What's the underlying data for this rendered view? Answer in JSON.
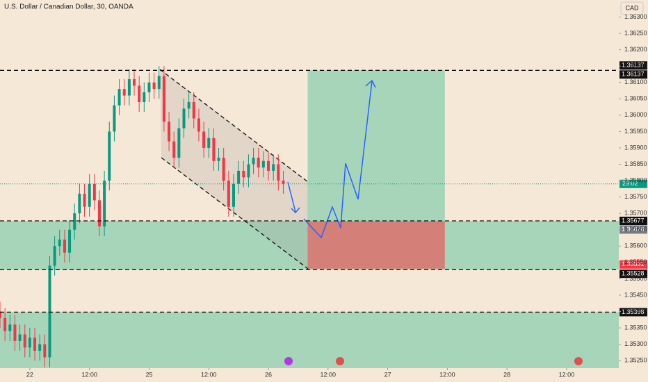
{
  "chart_data": {
    "type": "candlestick",
    "title": "U.S. Dollar / Canadian Dollar, 30, OANDA",
    "currency": "CAD",
    "countdown": "29:02",
    "x": [
      -6,
      -5,
      -4,
      -3,
      -2,
      -1,
      0,
      1,
      2,
      3,
      4,
      5,
      6,
      7,
      8,
      9,
      10,
      11,
      12,
      13,
      14,
      15,
      16,
      17,
      18,
      19,
      20,
      21,
      22,
      23,
      24,
      25,
      26,
      27,
      28,
      29,
      30,
      31,
      32,
      33,
      34,
      35,
      36,
      37,
      38,
      39,
      40,
      41,
      42,
      43,
      44,
      45,
      46,
      47,
      48,
      49,
      50,
      51
    ],
    "open": [
      1.354,
      1.3538,
      1.3534,
      1.3536,
      1.3531,
      1.3533,
      1.3529,
      1.3532,
      1.3528,
      1.353,
      1.3526,
      1.3554,
      1.356,
      1.3562,
      1.3558,
      1.3565,
      1.357,
      1.3576,
      1.3572,
      1.3579,
      1.3574,
      1.3566,
      1.358,
      1.3595,
      1.3603,
      1.3608,
      1.3606,
      1.3611,
      1.3609,
      1.3604,
      1.3607,
      1.361,
      1.3608,
      1.3612,
      1.3598,
      1.3592,
      1.3587,
      1.3596,
      1.3602,
      1.3604,
      1.3599,
      1.3595,
      1.359,
      1.3593,
      1.3586,
      1.3587,
      1.358,
      1.3572,
      1.3579,
      1.3583,
      1.3581,
      1.3585,
      1.3587,
      1.3584,
      1.3586,
      1.3583,
      1.3585,
      1.358
    ],
    "high": [
      1.3543,
      1.3541,
      1.3539,
      1.3539,
      1.3536,
      1.3536,
      1.3535,
      1.3535,
      1.3533,
      1.3533,
      1.3557,
      1.3563,
      1.3565,
      1.3565,
      1.3568,
      1.3573,
      1.3579,
      1.3579,
      1.3582,
      1.3582,
      1.3577,
      1.3583,
      1.3598,
      1.3606,
      1.3611,
      1.3611,
      1.3614,
      1.3614,
      1.3612,
      1.361,
      1.3613,
      1.3613,
      1.3615,
      1.3615,
      1.3601,
      1.3595,
      1.3599,
      1.3605,
      1.3607,
      1.3607,
      1.3602,
      1.3598,
      1.3596,
      1.3596,
      1.359,
      1.359,
      1.3583,
      1.3582,
      1.3586,
      1.3586,
      1.3588,
      1.359,
      1.359,
      1.3589,
      1.3589,
      1.3588,
      1.3588,
      1.3583
    ],
    "low": [
      1.3535,
      1.3531,
      1.3531,
      1.3528,
      1.3528,
      1.3526,
      1.3526,
      1.3525,
      1.3525,
      1.3523,
      1.3523,
      1.3551,
      1.3557,
      1.3555,
      1.3555,
      1.3562,
      1.3567,
      1.3569,
      1.3569,
      1.3571,
      1.3563,
      1.3563,
      1.3577,
      1.3592,
      1.36,
      1.3603,
      1.3603,
      1.3606,
      1.3601,
      1.3601,
      1.3604,
      1.3605,
      1.3605,
      1.3595,
      1.3589,
      1.3584,
      1.3584,
      1.3593,
      1.3599,
      1.3596,
      1.3592,
      1.3587,
      1.3587,
      1.3583,
      1.3583,
      1.3577,
      1.3569,
      1.3569,
      1.3576,
      1.3578,
      1.3578,
      1.3582,
      1.3581,
      1.3581,
      1.358,
      1.358,
      1.3577,
      1.3576
    ],
    "close": [
      1.3538,
      1.3534,
      1.3536,
      1.3531,
      1.3533,
      1.3529,
      1.3532,
      1.3528,
      1.353,
      1.3526,
      1.3554,
      1.356,
      1.3562,
      1.3558,
      1.3565,
      1.357,
      1.3576,
      1.3572,
      1.3579,
      1.3574,
      1.3566,
      1.358,
      1.3595,
      1.3603,
      1.3608,
      1.3606,
      1.3611,
      1.3609,
      1.3604,
      1.3607,
      1.361,
      1.3608,
      1.3612,
      1.3598,
      1.3592,
      1.3587,
      1.3596,
      1.3602,
      1.3604,
      1.3599,
      1.3595,
      1.359,
      1.3593,
      1.3586,
      1.3587,
      1.358,
      1.3572,
      1.3579,
      1.3583,
      1.3581,
      1.3585,
      1.3587,
      1.3584,
      1.3586,
      1.3583,
      1.3585,
      1.358,
      1.3579
    ],
    "up_color": "#089981",
    "down_color": "#f23645",
    "xlim": [
      -6,
      118.5
    ],
    "xticks": [
      {
        "value": 0,
        "label": "22"
      },
      {
        "value": 12,
        "label": "12:00"
      },
      {
        "value": 24,
        "label": "25"
      },
      {
        "value": 36,
        "label": "12:00"
      },
      {
        "value": 48,
        "label": "26"
      },
      {
        "value": 60,
        "label": "12:00"
      },
      {
        "value": 72,
        "label": "27"
      },
      {
        "value": 84,
        "label": "12:00"
      },
      {
        "value": 96,
        "label": "28"
      },
      {
        "value": 108,
        "label": "12:00"
      }
    ],
    "ylim": [
      1.35227,
      1.36352
    ],
    "yticks": [
      {
        "value": 1.363,
        "label": "1.36300"
      },
      {
        "value": 1.3625,
        "label": "1.36250"
      },
      {
        "value": 1.362,
        "label": "1.36200"
      },
      {
        "value": 1.3615,
        "label": "1.36150"
      },
      {
        "value": 1.361,
        "label": "1.36100"
      },
      {
        "value": 1.3605,
        "label": "1.36050"
      },
      {
        "value": 1.36,
        "label": "1.36000"
      },
      {
        "value": 1.3595,
        "label": "1.35950"
      },
      {
        "value": 1.359,
        "label": "1.35900"
      },
      {
        "value": 1.3585,
        "label": "1.35850"
      },
      {
        "value": 1.358,
        "label": "1.35800"
      },
      {
        "value": 1.3575,
        "label": "1.35750"
      },
      {
        "value": 1.357,
        "label": "1.35700"
      },
      {
        "value": 1.3565,
        "label": "1.35650"
      },
      {
        "value": 1.356,
        "label": "1.35600"
      },
      {
        "value": 1.3555,
        "label": "1.35550"
      },
      {
        "value": 1.355,
        "label": "1.35500"
      },
      {
        "value": 1.3545,
        "label": "1.35450"
      },
      {
        "value": 1.354,
        "label": "1.35400"
      },
      {
        "value": 1.3535,
        "label": "1.35350"
      },
      {
        "value": 1.353,
        "label": "1.35300"
      },
      {
        "value": 1.3525,
        "label": "1.35250"
      }
    ],
    "price_lines": [
      1.36137,
      1.35677,
      1.35528,
      1.35398
    ],
    "zones": [
      [
        1.35677,
        1.35528
      ],
      [
        1.35398,
        1.35227
      ]
    ],
    "zone_color": "#a7d5b9",
    "position": {
      "x": [
        55.9,
        83.5
      ],
      "target": 1.36137,
      "entry": 1.35676,
      "stop": 1.35531,
      "profit_color": "#a7d5b9",
      "loss_color": "#d47f77"
    }
  }
}
